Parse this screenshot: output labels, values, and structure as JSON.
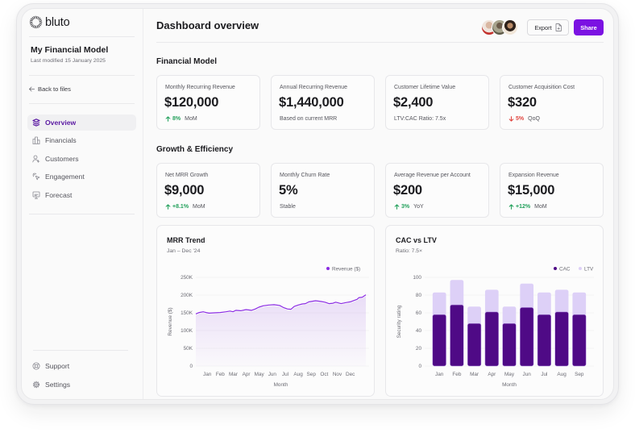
{
  "app": {
    "brand": "bluto"
  },
  "sidebar": {
    "file_title": "My Financial Model",
    "file_meta": "Last modified 15 January 2025",
    "back_label": "Back to files",
    "nav": [
      {
        "label": "Overview",
        "icon": "layers-icon",
        "active": true
      },
      {
        "label": "Financials",
        "icon": "buildings-icon",
        "active": false
      },
      {
        "label": "Customers",
        "icon": "user-plus-icon",
        "active": false
      },
      {
        "label": "Engagement",
        "icon": "cursor-click-icon",
        "active": false
      },
      {
        "label": "Forecast",
        "icon": "presentation-icon",
        "active": false
      }
    ],
    "footer": [
      {
        "label": "Support",
        "icon": "lifebuoy-icon"
      },
      {
        "label": "Settings",
        "icon": "gear-icon"
      }
    ]
  },
  "header": {
    "title": "Dashboard overview",
    "collaborators_count": 3,
    "export_label": "Export",
    "share_label": "Share"
  },
  "sections": [
    {
      "title": "Financial Model",
      "cards": [
        {
          "label": "Monthly Recurring Revenue",
          "value": "$120,000",
          "delta": "8%",
          "direction": "up",
          "note": "MoM"
        },
        {
          "label": "Annual Recurring Revenue",
          "value": "$1,440,000",
          "note": "Based on current MRR"
        },
        {
          "label": "Customer Lifetime Value",
          "value": "$2,400",
          "note": "LTV:CAC Ratio: 7.5x"
        },
        {
          "label": "Customer Acquisition Cost",
          "value": "$320",
          "delta": "5%",
          "direction": "down",
          "note": "QoQ"
        }
      ]
    },
    {
      "title": "Growth & Efficiency",
      "cards": [
        {
          "label": "Net MRR Growth",
          "value": "$9,000",
          "delta": "+8.1%",
          "direction": "up",
          "note": "MoM"
        },
        {
          "label": "Monthly Churn Rate",
          "value": "5%",
          "note": "Stable"
        },
        {
          "label": "Average Revenue per Account",
          "value": "$200",
          "delta": "3%",
          "direction": "up",
          "note": "YoY"
        },
        {
          "label": "Expansion Revenue",
          "value": "$15,000",
          "delta": "+12%",
          "direction": "up",
          "note": "MoM"
        }
      ]
    }
  ],
  "colors": {
    "accent": "#7b12e2",
    "nav_active": "#5b1aa3",
    "positive": "#22a05b",
    "negative": "#e0443e",
    "line": "#8a2be2",
    "cac": "#4f0a86",
    "ltv": "#ddd0f7"
  },
  "chart_data": [
    {
      "type": "area",
      "title": "MRR Trend",
      "subtitle": "Jan – Dec '24",
      "xlabel": "Month",
      "ylabel": "Revenue ($)",
      "legend": [
        {
          "name": "Revenue ($)",
          "color": "#8a2be2"
        }
      ],
      "legend_position": "top-right",
      "grid": true,
      "xlim": [
        0.12,
        13.2
      ],
      "ylim": [
        0,
        250000
      ],
      "yticks": [
        0,
        50000,
        100000,
        150000,
        200000,
        250000
      ],
      "ytick_labels": [
        "0",
        "50K",
        "100K",
        "150K",
        "200K",
        "250K"
      ],
      "xticks": [
        1,
        2,
        3,
        4,
        5,
        6,
        7,
        8,
        9,
        10,
        11,
        12
      ],
      "xtick_labels": [
        "Jan",
        "Feb",
        "Mar",
        "Apr",
        "May",
        "Jun",
        "Jul",
        "Aug",
        "Sep",
        "Oct",
        "Nov",
        "Dec"
      ],
      "series": [
        {
          "name": "Revenue ($)",
          "x": [
            0.12,
            0.38,
            0.69,
            0.9,
            1.14,
            1.51,
            1.99,
            2.44,
            2.75,
            2.98,
            3.2,
            3.57,
            3.98,
            4.4,
            4.7,
            4.97,
            5.32,
            5.73,
            6.14,
            6.56,
            6.86,
            7.17,
            7.44,
            7.69,
            8.0,
            8.3,
            8.55,
            8.82,
            9.33,
            9.75,
            10.06,
            10.36,
            10.67,
            10.88,
            11.29,
            11.7,
            12.0,
            12.3,
            12.52,
            12.67,
            12.93,
            13.2
          ],
          "y": [
            147000,
            151000,
            153000,
            151000,
            149000,
            150000,
            151000,
            153000,
            155000,
            153000,
            157000,
            156000,
            159000,
            157000,
            161000,
            166000,
            170000,
            172000,
            173000,
            171000,
            165000,
            161000,
            160000,
            168000,
            172000,
            175000,
            176000,
            181000,
            184000,
            182000,
            180000,
            176000,
            177000,
            180000,
            176000,
            179000,
            181000,
            185000,
            188000,
            193000,
            194000,
            201000
          ]
        }
      ]
    },
    {
      "type": "bar",
      "title": "CAC vs LTV",
      "subtitle": "Ratio: 7.5×",
      "xlabel": "Month",
      "ylabel": "Security rating",
      "legend_position": "top-right",
      "grid": true,
      "ylim": [
        0,
        100
      ],
      "yticks": [
        0,
        20,
        40,
        60,
        80,
        100
      ],
      "ytick_labels": [
        "0",
        "20",
        "40",
        "60",
        "80",
        "100"
      ],
      "categories": [
        "Jan",
        "Feb",
        "Mar",
        "Apr",
        "May",
        "Jun",
        "Jul",
        "Aug",
        "Sep"
      ],
      "series": [
        {
          "name": "CAC",
          "color": "#4f0a86",
          "values": [
            58,
            69,
            48,
            61,
            48,
            66,
            58,
            61,
            58
          ]
        },
        {
          "name": "LTV",
          "color": "#ddd0f7",
          "values": [
            83,
            97,
            67,
            86,
            67,
            93,
            83,
            86,
            83
          ]
        }
      ]
    }
  ]
}
